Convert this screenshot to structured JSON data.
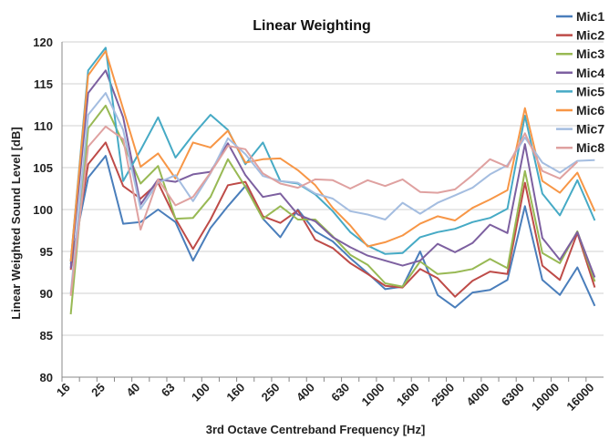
{
  "chart_data": {
    "type": "line",
    "title": "Linear Weighting",
    "xlabel": "3rd Octave Centreband Frequency [Hz]",
    "ylabel": "Linear Weighted Sound Level [dB]",
    "ylim": [
      80,
      120
    ],
    "y_ticks": [
      80,
      85,
      90,
      95,
      100,
      105,
      110,
      115,
      120
    ],
    "grid": "horizontal",
    "legend_position": "right",
    "categories": [
      "16",
      "20",
      "25",
      "31.5",
      "40",
      "50",
      "63",
      "80",
      "100",
      "125",
      "160",
      "200",
      "250",
      "315",
      "400",
      "500",
      "630",
      "800",
      "1000",
      "1250",
      "1600",
      "2000",
      "2500",
      "3150",
      "4000",
      "5000",
      "6300",
      "8000",
      "10000",
      "12500",
      "16000"
    ],
    "x_tick_labels": [
      "16",
      "25",
      "40",
      "63",
      "100",
      "160",
      "250",
      "400",
      "630",
      "1000",
      "1600",
      "2500",
      "4000",
      "6300",
      "10000",
      "16000"
    ],
    "series": [
      {
        "name": "Mic1",
        "color": "#4a7ebb",
        "values": [
          93.5,
          103.8,
          106.4,
          98.3,
          98.5,
          100.0,
          98.5,
          93.9,
          97.8,
          100.4,
          102.8,
          98.9,
          96.7,
          100.0,
          97.4,
          96.2,
          94.2,
          92.4,
          90.5,
          90.8,
          95.0,
          89.8,
          88.3,
          90.1,
          90.4,
          91.6,
          100.4,
          91.6,
          89.8,
          93.1,
          88.5
        ]
      },
      {
        "name": "Mic2",
        "color": "#be4b48",
        "values": [
          92.8,
          105.4,
          108.0,
          102.8,
          101.3,
          103.2,
          98.9,
          95.3,
          98.8,
          102.9,
          103.3,
          99.2,
          98.4,
          99.9,
          96.4,
          95.4,
          93.6,
          92.3,
          90.9,
          90.7,
          92.9,
          91.8,
          89.6,
          91.5,
          92.6,
          92.3,
          103.2,
          93.3,
          91.6,
          97.2,
          90.7
        ]
      },
      {
        "name": "Mic3",
        "color": "#98b954",
        "values": [
          87.5,
          109.7,
          112.4,
          107.9,
          103.1,
          105.2,
          98.9,
          99.0,
          101.5,
          106.0,
          102.7,
          98.9,
          100.4,
          98.8,
          98.8,
          96.8,
          94.6,
          93.4,
          91.2,
          90.8,
          93.8,
          92.3,
          92.5,
          92.9,
          94.1,
          93.0,
          104.6,
          94.8,
          93.6,
          97.4,
          91.4
        ]
      },
      {
        "name": "Mic4",
        "color": "#7d60a0",
        "values": [
          93.0,
          113.9,
          116.6,
          111.0,
          100.6,
          103.6,
          103.3,
          104.2,
          104.5,
          107.9,
          104.1,
          101.5,
          101.9,
          99.4,
          98.6,
          96.7,
          95.5,
          94.5,
          93.9,
          93.3,
          93.9,
          95.9,
          94.9,
          96.0,
          98.2,
          97.2,
          107.8,
          96.6,
          94.0,
          97.3,
          91.9
        ]
      },
      {
        "name": "Mic5",
        "color": "#46aac5",
        "values": [
          93.8,
          116.6,
          119.3,
          103.4,
          107.1,
          111.0,
          106.2,
          108.9,
          111.3,
          109.5,
          105.4,
          108.0,
          103.4,
          103.1,
          101.8,
          99.8,
          97.3,
          95.7,
          94.7,
          94.8,
          96.7,
          97.3,
          97.7,
          98.5,
          99.0,
          100.1,
          111.2,
          101.9,
          99.3,
          103.5,
          98.7
        ]
      },
      {
        "name": "Mic6",
        "color": "#f79646",
        "values": [
          93.8,
          116.0,
          118.9,
          112.0,
          105.1,
          106.7,
          103.7,
          108.0,
          107.4,
          109.4,
          105.6,
          106.0,
          106.1,
          104.7,
          102.9,
          100.2,
          98.1,
          95.6,
          96.1,
          96.9,
          98.3,
          99.2,
          98.7,
          100.2,
          101.2,
          102.3,
          112.1,
          103.4,
          102.0,
          104.4,
          99.8
        ]
      },
      {
        "name": "Mic7",
        "color": "#a4bde0",
        "values": [
          90.0,
          111.3,
          113.9,
          109.5,
          100.1,
          103.2,
          104.1,
          101.0,
          104.3,
          108.5,
          106.6,
          104.0,
          103.4,
          103.2,
          101.9,
          101.3,
          99.8,
          99.4,
          98.8,
          100.8,
          99.5,
          100.8,
          101.7,
          102.6,
          104.2,
          105.3,
          108.6,
          105.6,
          104.4,
          105.8,
          105.9
        ]
      },
      {
        "name": "Mic8",
        "color": "#dfa1a0",
        "values": [
          89.7,
          107.5,
          109.9,
          108.4,
          97.6,
          103.6,
          100.5,
          101.5,
          104.4,
          107.6,
          107.2,
          104.3,
          103.1,
          102.6,
          103.6,
          103.5,
          102.5,
          103.5,
          102.8,
          103.6,
          102.1,
          102.0,
          102.4,
          104.1,
          106.0,
          105.1,
          109.1,
          104.6,
          103.7,
          105.7,
          null
        ]
      }
    ]
  }
}
